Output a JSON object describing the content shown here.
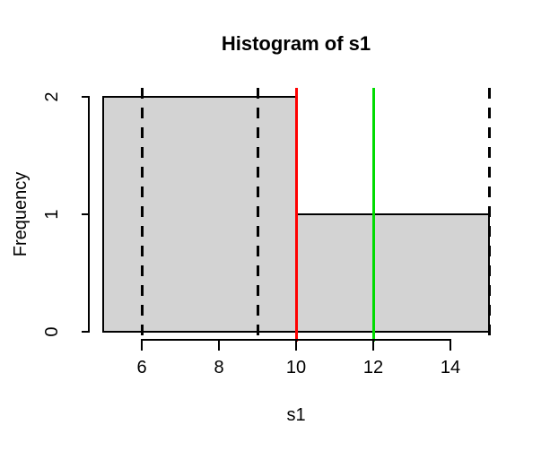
{
  "chart_data": {
    "type": "bar",
    "subtype": "histogram",
    "title": "Histogram of s1",
    "xlabel": "s1",
    "ylabel": "Frequency",
    "xlim": [
      5,
      15
    ],
    "ylim": [
      0,
      2
    ],
    "grid": false,
    "x_ticks": [
      6,
      8,
      10,
      12,
      14
    ],
    "y_ticks": [
      0,
      1,
      2
    ],
    "bins": [
      {
        "from": 5,
        "to": 10,
        "count": 2
      },
      {
        "from": 10,
        "to": 15,
        "count": 1
      }
    ],
    "bar_fill": "#d3d3d3",
    "bar_border": "#000000",
    "vlines": [
      {
        "x": 6,
        "style": "dashed",
        "color": "#000000",
        "label": "dashed-line-at-6"
      },
      {
        "x": 9,
        "style": "dashed",
        "color": "#000000",
        "label": "dashed-line-at-9"
      },
      {
        "x": 15,
        "style": "dashed",
        "color": "#000000",
        "label": "dashed-line-at-15"
      },
      {
        "x": 10,
        "style": "solid",
        "color": "#ff0000",
        "label": "red-line-at-10"
      },
      {
        "x": 12,
        "style": "solid",
        "color": "#00dc00",
        "label": "green-line-at-12"
      }
    ]
  }
}
